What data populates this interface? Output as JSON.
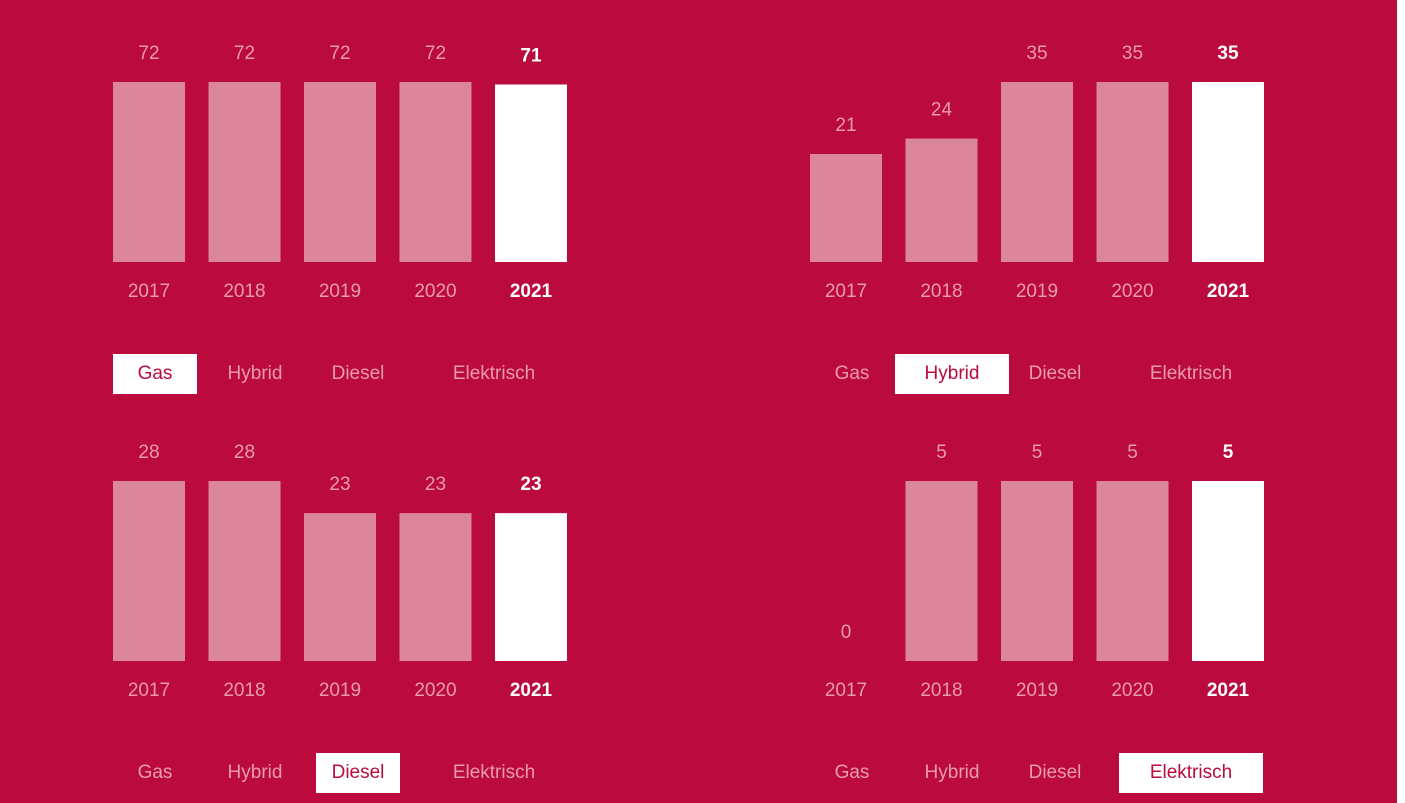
{
  "chart_data": [
    {
      "type": "bar",
      "categories": [
        "2017",
        "2018",
        "2019",
        "2020",
        "2021"
      ],
      "values": [
        72,
        72,
        72,
        72,
        71
      ],
      "color": "#dc869d",
      "highlight": 4,
      "highlight_color": "#ffffff",
      "tabs": [
        "Gas",
        "Hybrid",
        "Diesel",
        "Elektrisch"
      ],
      "active_tab": 0
    },
    {
      "type": "bar",
      "categories": [
        "2017",
        "2018",
        "2019",
        "2020",
        "2021"
      ],
      "values": [
        21,
        24,
        35,
        35,
        35
      ],
      "color": "#dc869d",
      "highlight": 4,
      "highlight_color": "#ffffff",
      "tabs": [
        "Gas",
        "Hybrid",
        "Diesel",
        "Elektrisch"
      ],
      "active_tab": 1
    },
    {
      "type": "bar",
      "categories": [
        "2017",
        "2018",
        "2019",
        "2020",
        "2021"
      ],
      "values": [
        28,
        28,
        23,
        23,
        23
      ],
      "color": "#dc869d",
      "highlight": 4,
      "highlight_color": "#ffffff",
      "tabs": [
        "Gas",
        "Hybrid",
        "Diesel",
        "Elektrisch"
      ],
      "active_tab": 2
    },
    {
      "type": "bar",
      "categories": [
        "2017",
        "2018",
        "2019",
        "2020",
        "2021"
      ],
      "values": [
        0,
        5,
        5,
        5,
        5
      ],
      "color": "#dc869d",
      "highlight": 4,
      "highlight_color": "#ffffff",
      "tabs": [
        "Gas",
        "Hybrid",
        "Diesel",
        "Elektrisch"
      ],
      "active_tab": 3
    }
  ]
}
